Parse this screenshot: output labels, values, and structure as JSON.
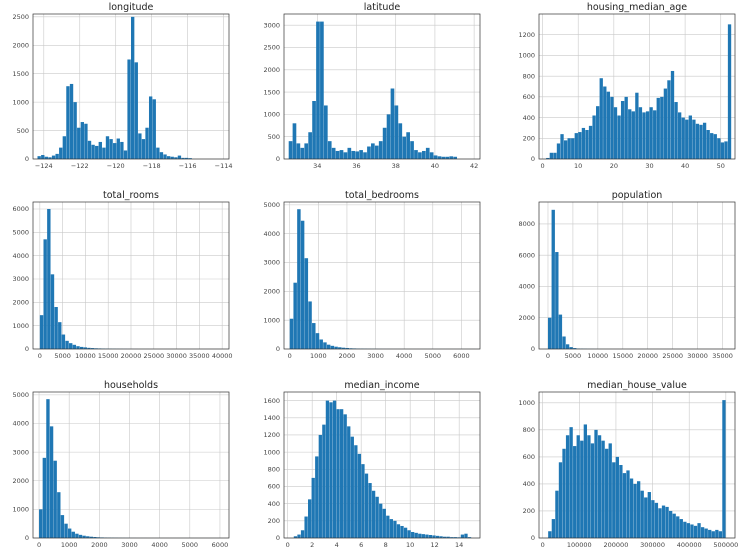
{
  "chart_data": [
    {
      "type": "bar",
      "title": "longitude",
      "bar_color": "#1f77b4",
      "xlim": [
        -124.6,
        -113.7
      ],
      "ylim": [
        0,
        2550
      ],
      "xticks": [
        -124,
        -122,
        -120,
        -118,
        -116,
        -114
      ],
      "yticks": [
        0,
        500,
        1000,
        1500,
        2000,
        2500
      ],
      "bins_start": -124.35,
      "bin_width": 0.2,
      "values": [
        50,
        70,
        40,
        30,
        60,
        90,
        200,
        400,
        1280,
        1320,
        1000,
        550,
        650,
        620,
        320,
        250,
        230,
        300,
        200,
        400,
        350,
        280,
        360,
        300,
        150,
        1750,
        2500,
        1700,
        450,
        350,
        550,
        1100,
        1050,
        200,
        120,
        80,
        50,
        40,
        30,
        60,
        20,
        20,
        15
      ]
    },
    {
      "type": "bar",
      "title": "latitude",
      "bar_color": "#1f77b4",
      "xlim": [
        32.3,
        42.3
      ],
      "ylim": [
        0,
        3250
      ],
      "xticks": [
        34,
        36,
        38,
        40,
        42
      ],
      "yticks": [
        0,
        500,
        1000,
        1500,
        2000,
        2500,
        3000
      ],
      "bins_start": 32.54,
      "bin_width": 0.2,
      "values": [
        400,
        800,
        350,
        250,
        350,
        600,
        1300,
        3080,
        3080,
        1200,
        400,
        250,
        180,
        200,
        150,
        250,
        180,
        170,
        200,
        150,
        280,
        350,
        300,
        400,
        700,
        1000,
        1580,
        1200,
        800,
        500,
        600,
        400,
        200,
        150,
        180,
        250,
        150,
        80,
        60,
        50,
        50,
        60,
        50
      ]
    },
    {
      "type": "bar",
      "title": "housing_median_age",
      "bar_color": "#1f77b4",
      "xlim": [
        -1,
        54
      ],
      "ylim": [
        0,
        1400
      ],
      "xticks": [
        0,
        10,
        20,
        30,
        40,
        50
      ],
      "yticks": [
        0,
        200,
        400,
        600,
        800,
        1000,
        1200
      ],
      "bins_start": 1,
      "bin_width": 1,
      "values": [
        10,
        60,
        60,
        150,
        240,
        180,
        200,
        200,
        250,
        260,
        300,
        280,
        320,
        420,
        510,
        780,
        700,
        650,
        600,
        500,
        420,
        560,
        600,
        480,
        460,
        640,
        500,
        450,
        460,
        500,
        470,
        590,
        600,
        680,
        760,
        850,
        550,
        450,
        400,
        380,
        420,
        380,
        340,
        330,
        350,
        280,
        250,
        240,
        200,
        160,
        170,
        1300
      ]
    },
    {
      "type": "bar",
      "title": "total_rooms",
      "bar_color": "#1f77b4",
      "xlim": [
        -1500,
        41500
      ],
      "ylim": [
        0,
        6300
      ],
      "xticks": [
        0,
        5000,
        10000,
        15000,
        20000,
        25000,
        30000,
        35000,
        40000
      ],
      "yticks": [
        0,
        1000,
        2000,
        3000,
        4000,
        5000,
        6000
      ],
      "bins_start": 0,
      "bin_width": 800,
      "values": [
        1450,
        4700,
        6000,
        3200,
        1800,
        1150,
        620,
        350,
        250,
        180,
        120,
        90,
        70,
        50,
        40,
        30,
        25,
        20,
        15,
        12,
        10,
        8,
        6,
        5,
        4,
        3,
        3,
        2,
        2,
        2,
        1,
        1,
        1,
        1,
        1,
        1,
        1,
        1,
        1,
        1,
        1,
        1,
        1,
        1,
        1,
        1,
        1,
        1,
        1,
        1
      ]
    },
    {
      "type": "bar",
      "title": "total_bedrooms",
      "bar_color": "#1f77b4",
      "xlim": [
        -200,
        6650
      ],
      "ylim": [
        0,
        5100
      ],
      "xticks": [
        0,
        1000,
        2000,
        3000,
        4000,
        5000,
        6000
      ],
      "yticks": [
        0,
        1000,
        2000,
        3000,
        4000,
        5000
      ],
      "bins_start": 0,
      "bin_width": 130,
      "values": [
        1050,
        2300,
        4850,
        4450,
        3150,
        1650,
        900,
        550,
        330,
        230,
        150,
        110,
        80,
        60,
        45,
        35,
        25,
        20,
        15,
        12,
        10,
        8,
        6,
        5,
        4,
        3,
        3,
        2,
        2,
        2,
        1,
        1,
        1,
        1,
        1,
        1,
        1,
        1,
        1,
        1,
        1,
        1,
        1,
        1,
        1,
        1,
        1,
        1,
        1,
        1
      ]
    },
    {
      "type": "bar",
      "title": "population",
      "bar_color": "#1f77b4",
      "xlim": [
        -1800,
        37500
      ],
      "ylim": [
        0,
        9400
      ],
      "xticks": [
        0,
        5000,
        10000,
        15000,
        20000,
        25000,
        30000,
        35000
      ],
      "yticks": [
        0,
        2000,
        4000,
        6000,
        8000
      ],
      "bins_start": 0,
      "bin_width": 720,
      "values": [
        2000,
        8900,
        6200,
        2200,
        800,
        300,
        120,
        60,
        30,
        20,
        15,
        10,
        8,
        5,
        4,
        3,
        2,
        2,
        1,
        1,
        1,
        1,
        1,
        1,
        1,
        1,
        1,
        1,
        1,
        1,
        1,
        1,
        1,
        1,
        1,
        1,
        1,
        1,
        1,
        1,
        1,
        1,
        1,
        1,
        1,
        1,
        1,
        1,
        1,
        1
      ]
    },
    {
      "type": "bar",
      "title": "households",
      "bar_color": "#1f77b4",
      "xlim": [
        -200,
        6300
      ],
      "ylim": [
        0,
        5100
      ],
      "xticks": [
        0,
        1000,
        2000,
        3000,
        4000,
        5000,
        6000
      ],
      "yticks": [
        0,
        1000,
        2000,
        3000,
        4000,
        5000
      ],
      "bins_start": 0,
      "bin_width": 120,
      "values": [
        1000,
        2800,
        4850,
        3900,
        2700,
        1600,
        800,
        500,
        330,
        220,
        150,
        110,
        80,
        60,
        45,
        35,
        25,
        20,
        15,
        12,
        10,
        8,
        6,
        5,
        4,
        3,
        3,
        2,
        2,
        2,
        1,
        1,
        1,
        1,
        1,
        1,
        1,
        1,
        1,
        1,
        1,
        1,
        1,
        1,
        1,
        1,
        1,
        1,
        1,
        1
      ]
    },
    {
      "type": "bar",
      "title": "median_income",
      "bar_color": "#1f77b4",
      "xlim": [
        -0.3,
        15.7
      ],
      "ylim": [
        0,
        1700
      ],
      "xticks": [
        0,
        2,
        4,
        6,
        8,
        10,
        12,
        14
      ],
      "yticks": [
        0,
        200,
        400,
        600,
        800,
        1000,
        1200,
        1400,
        1600
      ],
      "bins_start": 0.5,
      "bin_width": 0.29,
      "values": [
        20,
        40,
        90,
        250,
        450,
        700,
        950,
        1200,
        1320,
        1600,
        1580,
        1600,
        1500,
        1500,
        1440,
        1300,
        1180,
        1080,
        980,
        860,
        750,
        640,
        550,
        480,
        400,
        340,
        260,
        220,
        200,
        160,
        140,
        120,
        90,
        70,
        60,
        50,
        45,
        40,
        35,
        30,
        25,
        20,
        15,
        15,
        10,
        10,
        8,
        40,
        50,
        10
      ]
    },
    {
      "type": "bar",
      "title": "median_house_value",
      "bar_color": "#1f77b4",
      "xlim": [
        -10000,
        525000
      ],
      "ylim": [
        0,
        1080
      ],
      "xticks": [
        0,
        100000,
        200000,
        300000,
        400000,
        500000
      ],
      "yticks": [
        0,
        200,
        400,
        600,
        800,
        1000
      ],
      "bins_start": 15000,
      "bin_width": 9700,
      "values": [
        50,
        140,
        350,
        560,
        660,
        760,
        820,
        680,
        760,
        720,
        840,
        760,
        700,
        800,
        760,
        720,
        660,
        700,
        560,
        600,
        540,
        480,
        500,
        440,
        400,
        420,
        350,
        300,
        340,
        280,
        260,
        220,
        240,
        230,
        200,
        180,
        160,
        140,
        120,
        110,
        100,
        90,
        110,
        80,
        70,
        60,
        50,
        60,
        50,
        1020
      ]
    }
  ]
}
